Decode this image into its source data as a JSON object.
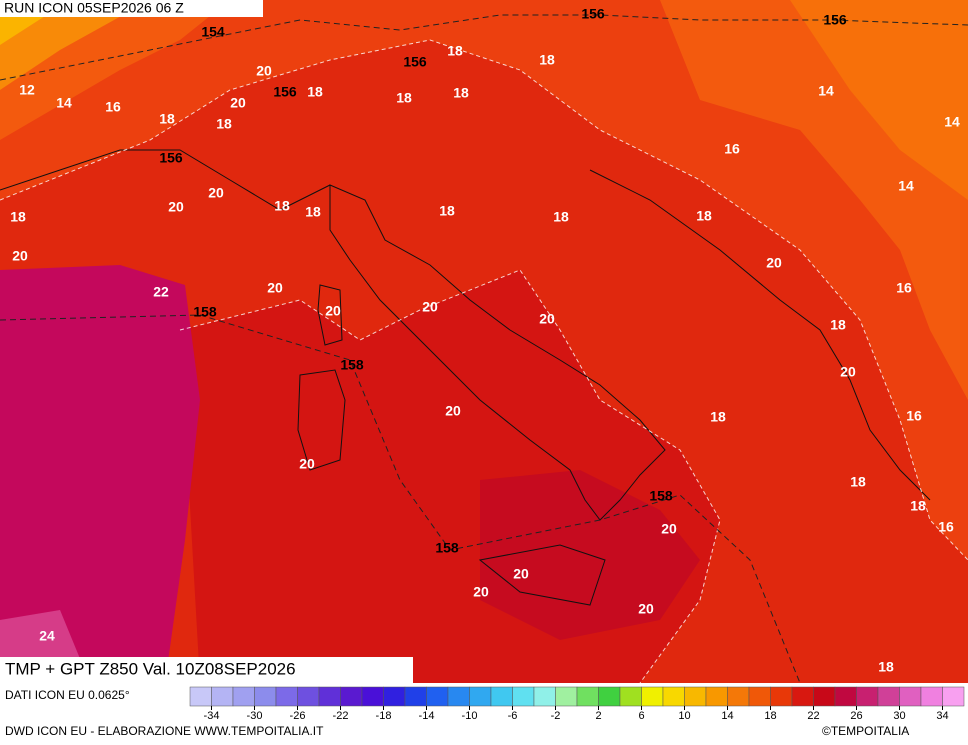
{
  "header": {
    "title": "RUN ICON 05SEP2026 06 Z"
  },
  "map": {
    "isotherm_labels": [
      12,
      14,
      16,
      18,
      20,
      20,
      18,
      20,
      20,
      18,
      20,
      22,
      20,
      20,
      18,
      18,
      18,
      18,
      18,
      18,
      18,
      18,
      18,
      16,
      14,
      14,
      14,
      18,
      20,
      16,
      20,
      20,
      18,
      20,
      20,
      18,
      16,
      20,
      18,
      18,
      16,
      20,
      20,
      20,
      20,
      24,
      18
    ],
    "height_labels": [
      156,
      156,
      154,
      156,
      156,
      156,
      158,
      158,
      158,
      158
    ]
  },
  "footer": {
    "title": "TMP + GPT Z850 Val. 10Z08SEP2026",
    "source": "DATI ICON EU 0.0625°",
    "credit": "DWD ICON EU - ELABORAZIONE WWW.TEMPOITALIA.IT",
    "copyright": "©TEMPOITALIA"
  },
  "legend": {
    "ticks": [
      -34,
      -30,
      -26,
      -22,
      -18,
      -14,
      -10,
      -6,
      -2,
      2,
      6,
      10,
      14,
      18,
      22,
      26,
      30,
      34
    ]
  }
}
